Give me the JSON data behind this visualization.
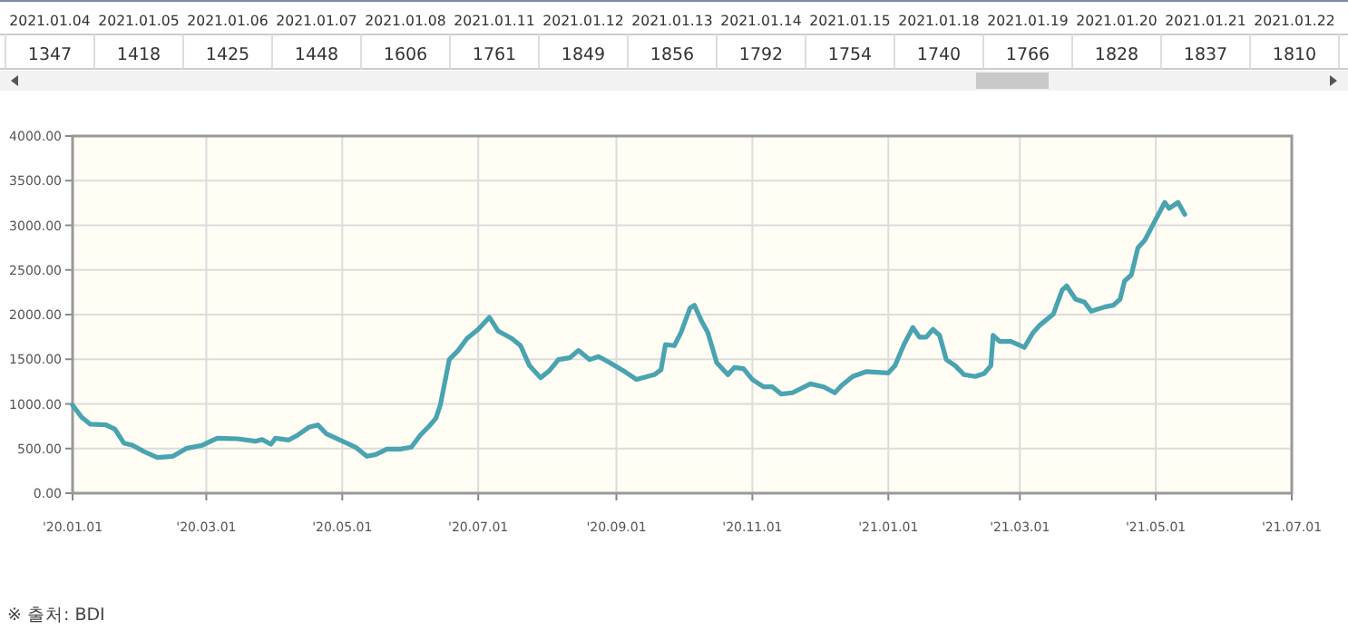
{
  "chart_data": [
    {
      "type": "other",
      "categories": [
        "2021.01.04",
        "2021.01.05",
        "2021.01.06",
        "2021.01.07",
        "2021.01.08",
        "2021.01.11",
        "2021.01.12",
        "2021.01.13",
        "2021.01.14",
        "2021.01.15",
        "2021.01.18",
        "2021.01.19",
        "2021.01.20",
        "2021.01.21",
        "2021.01.22"
      ],
      "values": [
        1347,
        1418,
        1425,
        1448,
        1606,
        1761,
        1849,
        1856,
        1792,
        1754,
        1740,
        1766,
        1828,
        1837,
        1810
      ],
      "data_labels": true
    },
    {
      "type": "line",
      "annotations": [
        "※ 출처: BDI"
      ],
      "series": [
        {
          "color": "#4aa3b0",
          "x": [
            "2020-01-01",
            "2020-01-05",
            "2020-01-09",
            "2020-01-16",
            "2020-01-20",
            "2020-01-24",
            "2020-01-28",
            "2020-02-02",
            "2020-02-08",
            "2020-02-15",
            "2020-02-21",
            "2020-02-28",
            "2020-03-03",
            "2020-03-06",
            "2020-03-15",
            "2020-03-23",
            "2020-03-26",
            "2020-03-30",
            "2020-04-01",
            "2020-04-07",
            "2020-04-11",
            "2020-04-16",
            "2020-04-20",
            "2020-04-24",
            "2020-04-30",
            "2020-05-07",
            "2020-05-12",
            "2020-05-16",
            "2020-05-21",
            "2020-05-27",
            "2020-06-01",
            "2020-06-05",
            "2020-06-09",
            "2020-06-12",
            "2020-06-14",
            "2020-06-18",
            "2020-06-22",
            "2020-06-26",
            "2020-07-01",
            "2020-07-06",
            "2020-07-10",
            "2020-07-16",
            "2020-07-20",
            "2020-07-24",
            "2020-07-29",
            "2020-08-02",
            "2020-08-06",
            "2020-08-11",
            "2020-08-15",
            "2020-08-20",
            "2020-08-24",
            "2020-08-29",
            "2020-09-04",
            "2020-09-10",
            "2020-09-18",
            "2020-09-21",
            "2020-09-23",
            "2020-09-27",
            "2020-09-30",
            "2020-10-04",
            "2020-10-06",
            "2020-10-09",
            "2020-10-12",
            "2020-10-16",
            "2020-10-21",
            "2020-10-24",
            "2020-10-28",
            "2020-11-01",
            "2020-11-06",
            "2020-11-10",
            "2020-11-14",
            "2020-11-19",
            "2020-11-27",
            "2020-12-03",
            "2020-12-08",
            "2020-12-11",
            "2020-12-16",
            "2020-12-22",
            "2021-01-01",
            "2021-01-04",
            "2021-01-08",
            "2021-01-12",
            "2021-01-15",
            "2021-01-18",
            "2021-01-21",
            "2021-01-24",
            "2021-01-27",
            "2021-01-31",
            "2021-02-04",
            "2021-02-09",
            "2021-02-13",
            "2021-02-16",
            "2021-02-17",
            "2021-02-20",
            "2021-02-25",
            "2021-03-03",
            "2021-03-07",
            "2021-03-10",
            "2021-03-16",
            "2021-03-20",
            "2021-03-22",
            "2021-03-26",
            "2021-03-30",
            "2021-04-02",
            "2021-04-08",
            "2021-04-12",
            "2021-04-15",
            "2021-04-17",
            "2021-04-20",
            "2021-04-23",
            "2021-04-26",
            "2021-04-30",
            "2021-05-05",
            "2021-05-07",
            "2021-05-11",
            "2021-05-14"
          ],
          "values": [
            988,
            853,
            772,
            765,
            718,
            562,
            535,
            467,
            400,
            413,
            501,
            535,
            582,
            616,
            609,
            582,
            602,
            548,
            616,
            596,
            650,
            738,
            765,
            663,
            596,
            515,
            413,
            433,
            494,
            494,
            515,
            650,
            751,
            839,
            988,
            1496,
            1598,
            1733,
            1835,
            1970,
            1814,
            1733,
            1652,
            1428,
            1293,
            1374,
            1496,
            1516,
            1598,
            1496,
            1530,
            1462,
            1374,
            1273,
            1327,
            1381,
            1665,
            1652,
            1800,
            2072,
            2105,
            1936,
            1800,
            1462,
            1327,
            1408,
            1395,
            1273,
            1191,
            1191,
            1110,
            1124,
            1225,
            1191,
            1124,
            1205,
            1307,
            1361,
            1347,
            1428,
            1665,
            1855,
            1747,
            1747,
            1835,
            1767,
            1496,
            1428,
            1327,
            1307,
            1340,
            1428,
            1767,
            1699,
            1699,
            1632,
            1800,
            1882,
            2004,
            2275,
            2322,
            2173,
            2139,
            2038,
            2085,
            2105,
            2173,
            2376,
            2444,
            2749,
            2830,
            3019,
            3256,
            3189,
            3256,
            3121
          ]
        }
      ],
      "xlim": [
        "2020-01-01",
        "2021-07-01"
      ],
      "xticks": [
        {
          "value": "2020-01-01",
          "label": "'20.01.01"
        },
        {
          "value": "2020-03-01",
          "label": "'20.03.01"
        },
        {
          "value": "2020-05-01",
          "label": "'20.05.01"
        },
        {
          "value": "2020-07-01",
          "label": "'20.07.01"
        },
        {
          "value": "2020-09-01",
          "label": "'20.09.01"
        },
        {
          "value": "2020-11-01",
          "label": "'20.11.01"
        },
        {
          "value": "2021-01-01",
          "label": "'21.01.01"
        },
        {
          "value": "2021-03-01",
          "label": "'21.03.01"
        },
        {
          "value": "2021-05-01",
          "label": "'21.05.01"
        },
        {
          "value": "2021-07-01",
          "label": "'21.07.01"
        }
      ],
      "ylim": [
        0,
        4000
      ],
      "yticks": [
        {
          "value": 0,
          "label": "0.00"
        },
        {
          "value": 500,
          "label": "500.00"
        },
        {
          "value": 1000,
          "label": "1000.00"
        },
        {
          "value": 1500,
          "label": "1500.00"
        },
        {
          "value": 2000,
          "label": "2000.00"
        },
        {
          "value": 2500,
          "label": "2500.00"
        },
        {
          "value": 3000,
          "label": "3000.00"
        },
        {
          "value": 3500,
          "label": "3500.00"
        },
        {
          "value": 4000,
          "label": "4000.00"
        }
      ],
      "grid": true,
      "marker": "none",
      "line_style": "solid"
    }
  ]
}
